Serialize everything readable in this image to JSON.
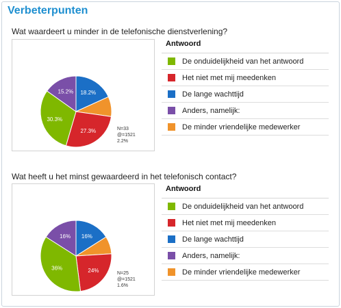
{
  "title": "Verbeterpunten",
  "legend_header": "Antwoord",
  "chart_data": [
    {
      "type": "pie",
      "question": "Wat waardeert u minder in de telefonische dienstverlening?",
      "categories": [
        "De onduidelijkheid van het antwoord",
        "Het niet met mij meedenken",
        "De lange wachttijd",
        "Anders, namelijk:",
        "De minder vriendelijke medewerker"
      ],
      "colors": [
        "#7fb800",
        "#d6262b",
        "#1b6fc6",
        "#7a4fa8",
        "#f0932b"
      ],
      "slices": [
        {
          "name": "De lange wachttijd",
          "value": 18.2,
          "label": "18.2%",
          "color": "#1b6fc6"
        },
        {
          "name": "De minder vriendelijke medewerker",
          "value": 9.1,
          "label": "",
          "color": "#f0932b"
        },
        {
          "name": "Het niet met mij meedenken",
          "value": 27.3,
          "label": "27.3%",
          "color": "#d6262b"
        },
        {
          "name": "De onduidelijkheid van het antwoord",
          "value": 30.3,
          "label": "30.3%",
          "color": "#7fb800"
        },
        {
          "name": "Anders, namelijk:",
          "value": 15.2,
          "label": "15.2%",
          "color": "#7a4fa8"
        }
      ],
      "note": [
        "N=33",
        "@=1521",
        "2.2%"
      ]
    },
    {
      "type": "pie",
      "question": "Wat heeft u het minst gewaardeerd in het telefonisch contact?",
      "categories": [
        "De onduidelijkheid van het antwoord",
        "Het niet met mij meedenken",
        "De lange wachttijd",
        "Anders, namelijk:",
        "De minder vriendelijke medewerker"
      ],
      "colors": [
        "#7fb800",
        "#d6262b",
        "#1b6fc6",
        "#7a4fa8",
        "#f0932b"
      ],
      "slices": [
        {
          "name": "De lange wachttijd",
          "value": 16,
          "label": "16%",
          "color": "#1b6fc6"
        },
        {
          "name": "De minder vriendelijke medewerker",
          "value": 8,
          "label": "",
          "color": "#f0932b"
        },
        {
          "name": "Het niet met mij meedenken",
          "value": 24,
          "label": "24%",
          "color": "#d6262b"
        },
        {
          "name": "De onduidelijkheid van het antwoord",
          "value": 36,
          "label": "36%",
          "color": "#7fb800"
        },
        {
          "name": "Anders, namelijk:",
          "value": 16,
          "label": "16%",
          "color": "#7a4fa8"
        }
      ],
      "note": [
        "N=25",
        "@=1521",
        "1.6%"
      ]
    }
  ]
}
